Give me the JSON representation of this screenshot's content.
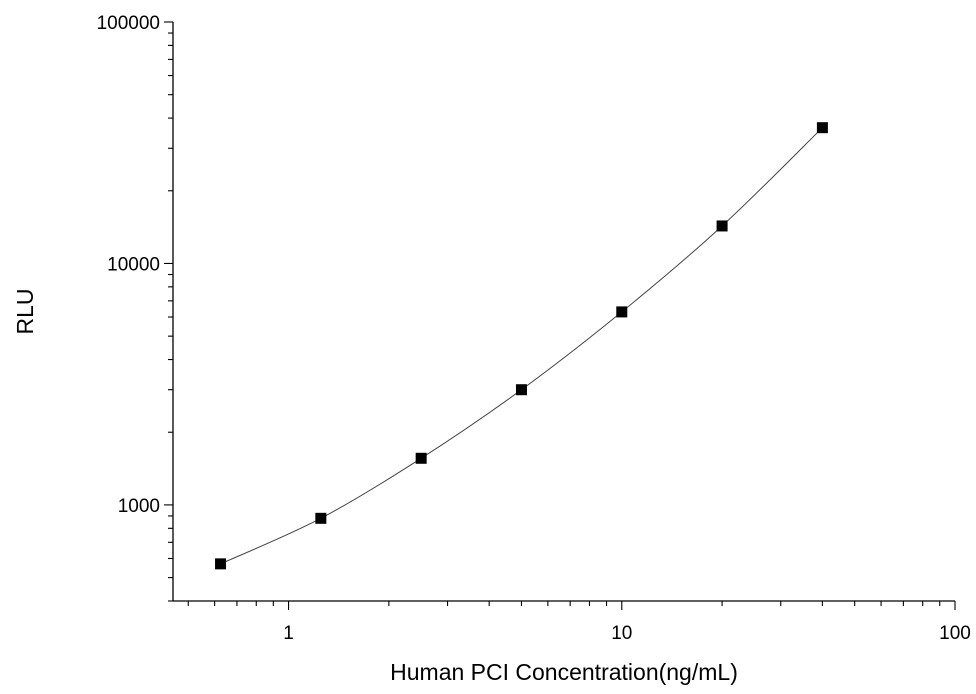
{
  "chart_data": {
    "type": "scatter",
    "xlabel": "Human PCI Concentration(ng/mL)",
    "ylabel": "RLU",
    "x_scale": "log",
    "y_scale": "log",
    "xlim": [
      0.45,
      100
    ],
    "ylim": [
      400,
      100000
    ],
    "x_ticks": [
      {
        "value": 1,
        "label": "1"
      },
      {
        "value": 10,
        "label": "10"
      },
      {
        "value": 100,
        "label": "100"
      }
    ],
    "y_ticks": [
      {
        "value": 1000,
        "label": "1000"
      },
      {
        "value": 10000,
        "label": "10000"
      },
      {
        "value": 100000,
        "label": "100000"
      }
    ],
    "grid": false,
    "series": [
      {
        "marker": "square",
        "color": "#000000",
        "line_color": "#444444",
        "points": [
          {
            "x": 0.625,
            "y": 570
          },
          {
            "x": 1.25,
            "y": 880
          },
          {
            "x": 2.5,
            "y": 1560
          },
          {
            "x": 5,
            "y": 3000
          },
          {
            "x": 10,
            "y": 6300
          },
          {
            "x": 20,
            "y": 14300
          },
          {
            "x": 40,
            "y": 36500
          }
        ]
      }
    ]
  }
}
